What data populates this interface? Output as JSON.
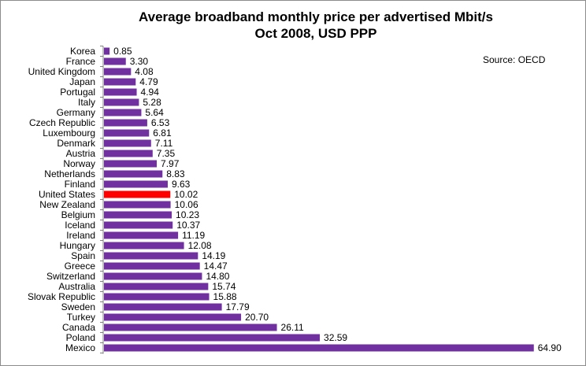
{
  "chart_data": {
    "type": "bar",
    "orientation": "horizontal",
    "title_line1": "Average broadband monthly price per advertised Mbit/s",
    "title_line2": "Oct 2008, USD PPP",
    "source": "Source: OECD",
    "xlim": [
      0,
      66
    ],
    "highlight_category": "United States",
    "colors": {
      "bar": "#7030a0",
      "highlight": "#ff0000",
      "axis": "#808080"
    },
    "categories": [
      "Korea",
      "France",
      "United Kingdom",
      "Japan",
      "Portugal",
      "Italy",
      "Germany",
      "Czech Republic",
      "Luxembourg",
      "Denmark",
      "Austria",
      "Norway",
      "Netherlands",
      "Finland",
      "United States",
      "New Zealand",
      "Belgium",
      "Iceland",
      "Ireland",
      "Hungary",
      "Spain",
      "Greece",
      "Switzerland",
      "Australia",
      "Slovak Republic",
      "Sweden",
      "Turkey",
      "Canada",
      "Poland",
      "Mexico"
    ],
    "values": [
      0.85,
      3.3,
      4.08,
      4.79,
      4.94,
      5.28,
      5.64,
      6.53,
      6.81,
      7.11,
      7.35,
      7.97,
      8.83,
      9.63,
      10.02,
      10.06,
      10.23,
      10.37,
      11.19,
      12.08,
      14.19,
      14.47,
      14.8,
      15.74,
      15.88,
      17.79,
      20.7,
      26.11,
      32.59,
      64.9
    ],
    "labels": [
      "0.85",
      "3.30",
      "4.08",
      "4.79",
      "4.94",
      "5.28",
      "5.64",
      "6.53",
      "6.81",
      "7.11",
      "7.35",
      "7.97",
      "8.83",
      "9.63",
      "10.02",
      "10.06",
      "10.23",
      "10.37",
      "11.19",
      "12.08",
      "14.19",
      "14.47",
      "14.80",
      "15.74",
      "15.88",
      "17.79",
      "20.70",
      "26.11",
      "32.59",
      "64.90"
    ]
  }
}
